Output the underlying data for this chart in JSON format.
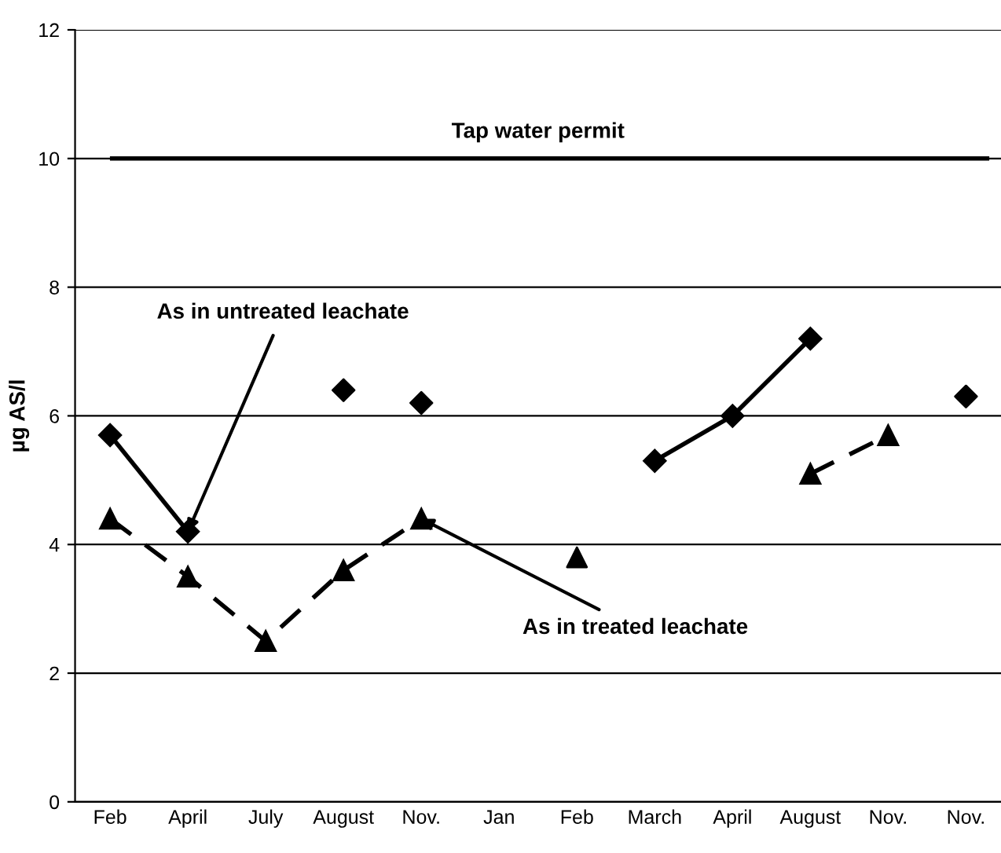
{
  "chart_data": {
    "type": "line",
    "ylabel": "µg AS/l",
    "categories": [
      "Feb",
      "April",
      "July",
      "August",
      "Nov.",
      "Jan",
      "Feb",
      "March",
      "April",
      "August",
      "Nov.",
      "Nov."
    ],
    "series": [
      {
        "color": "#000000",
        "marker": "diamond",
        "line_style": "solid",
        "values": [
          5.7,
          4.2,
          null,
          null,
          null,
          null,
          null,
          null,
          null,
          null,
          null,
          null
        ]
      },
      {
        "color": "#000000",
        "marker": "diamond",
        "line_style": "solid",
        "values": [
          null,
          null,
          null,
          null,
          null,
          null,
          null,
          5.3,
          6.0,
          7.2,
          null,
          null
        ]
      },
      {
        "type": "scatter",
        "color": "#000000",
        "marker": "diamond",
        "values": [
          null,
          null,
          null,
          6.4,
          6.2,
          null,
          null,
          null,
          null,
          null,
          null,
          6.3
        ]
      },
      {
        "color": "#000000",
        "marker": "triangle",
        "line_style": "dashed",
        "values": [
          4.4,
          3.5,
          2.5,
          3.6,
          4.4,
          null,
          null,
          null,
          null,
          null,
          null,
          null
        ]
      },
      {
        "color": "#000000",
        "marker": "triangle",
        "line_style": "dashed",
        "values": [
          null,
          null,
          null,
          null,
          null,
          null,
          null,
          null,
          null,
          5.1,
          5.7,
          null
        ]
      },
      {
        "type": "scatter",
        "color": "#000000",
        "marker": "triangle",
        "values": [
          null,
          null,
          null,
          null,
          null,
          null,
          3.8,
          null,
          null,
          null,
          null,
          null
        ]
      }
    ],
    "ylim": [
      0,
      12
    ],
    "yticks": [
      0,
      2,
      4,
      6,
      8,
      10,
      12
    ],
    "grid": "y",
    "legend": false,
    "ref_lines": [
      {
        "axis": "y",
        "value": 10,
        "label": "Tap water permit",
        "color": "#000000",
        "line_style": "solid"
      }
    ],
    "annotations": [
      {
        "text": "As in untreated leachate",
        "x": "April",
        "y": 4.2
      },
      {
        "text": "As in treated leachate",
        "x": "Nov.",
        "y": 4.4
      }
    ]
  }
}
